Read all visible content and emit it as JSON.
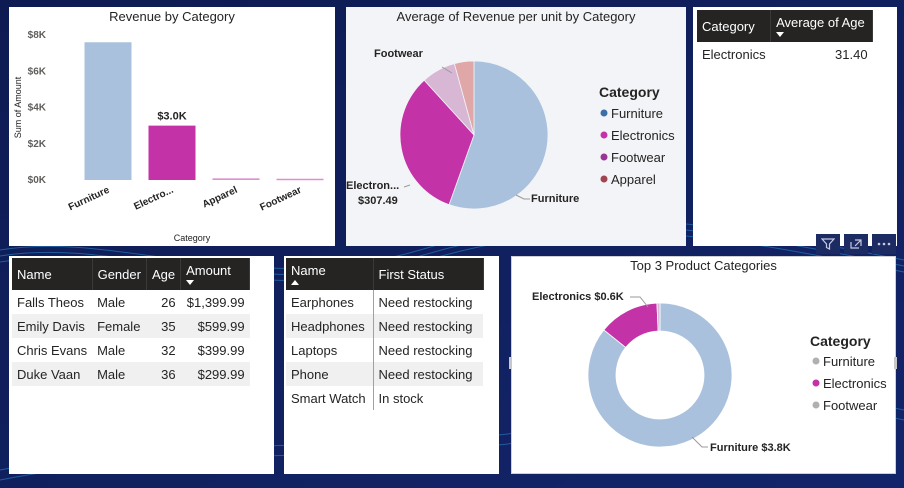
{
  "colors": {
    "furniture": "#a9c1dc",
    "electronics": "#c432a8",
    "footwear": "#d7b7d4",
    "apparel": "#e0a7a8",
    "legend_furniture": "#3b6fa7",
    "legend_electronics": "#c432a8",
    "legend_footwear": "#9a3596",
    "legend_apparel": "#a04452",
    "legend_grey": "#b0b0b0"
  },
  "bar_chart": {
    "title": "Revenue by Category",
    "xlabel": "Category",
    "ylabel": "Sum of Amount",
    "y_ticks": [
      "$0K",
      "$2K",
      "$4K",
      "$6K",
      "$8K"
    ],
    "data_label": "$3.0K"
  },
  "pie_chart": {
    "title": "Average of Revenue per unit by Category",
    "legend_title": "Category",
    "legend": [
      "Furniture",
      "Electronics",
      "Footwear",
      "Apparel"
    ],
    "label_footwear": "Footwear",
    "label_electronics_name": "Electron...",
    "label_electronics_value": "$307.49",
    "label_furniture": "Furniture"
  },
  "age_table": {
    "headers": [
      "Category",
      "Average of Age"
    ],
    "rows": [
      [
        "Electronics",
        "31.40"
      ]
    ]
  },
  "people_table": {
    "headers": [
      "Name",
      "Gender",
      "Age",
      "Amount"
    ],
    "rows": [
      [
        "Falls Theos",
        "Male",
        "26",
        "$1,399.99"
      ],
      [
        "Emily Davis",
        "Female",
        "35",
        "$599.99"
      ],
      [
        "Chris Evans",
        "Male",
        "32",
        "$399.99"
      ],
      [
        "Duke Vaan",
        "Male",
        "36",
        "$299.99"
      ]
    ]
  },
  "status_table": {
    "headers": [
      "Name",
      "First Status"
    ],
    "rows": [
      [
        "Earphones",
        "Need restocking"
      ],
      [
        "Headphones",
        "Need restocking"
      ],
      [
        "Laptops",
        "Need restocking"
      ],
      [
        "Phone",
        "Need restocking"
      ],
      [
        "Smart Watch",
        "In stock"
      ]
    ]
  },
  "donut_chart": {
    "title": "Top 3 Product Categories",
    "legend_title": "Category",
    "legend": [
      "Furniture",
      "Electronics",
      "Footwear"
    ],
    "label_electronics": "Electronics $0.6K",
    "label_furniture": "Furniture $3.8K"
  },
  "toolbar": {
    "filter_icon": "filter-icon",
    "focus_icon": "focus-mode-icon",
    "more_icon": "more-options-icon"
  },
  "chart_data": [
    {
      "type": "bar",
      "title": "Revenue by Category",
      "categories": [
        "Furniture",
        "Electro...",
        "Apparel",
        "Footwear"
      ],
      "values": [
        7600,
        3000,
        90,
        70
      ],
      "xlabel": "Category",
      "ylabel": "Sum of Amount",
      "ylim": [
        0,
        8000
      ],
      "grid": false
    },
    {
      "type": "pie",
      "title": "Average of Revenue per unit by Category",
      "categories": [
        "Furniture",
        "Electronics",
        "Footwear",
        "Apparel"
      ],
      "values": [
        520,
        307.49,
        70,
        40
      ],
      "legend": "right"
    },
    {
      "type": "pie",
      "title": "Top 3 Product Categories",
      "categories": [
        "Furniture",
        "Electronics",
        "Footwear"
      ],
      "values": [
        3800,
        600,
        30
      ],
      "legend": "right"
    }
  ]
}
